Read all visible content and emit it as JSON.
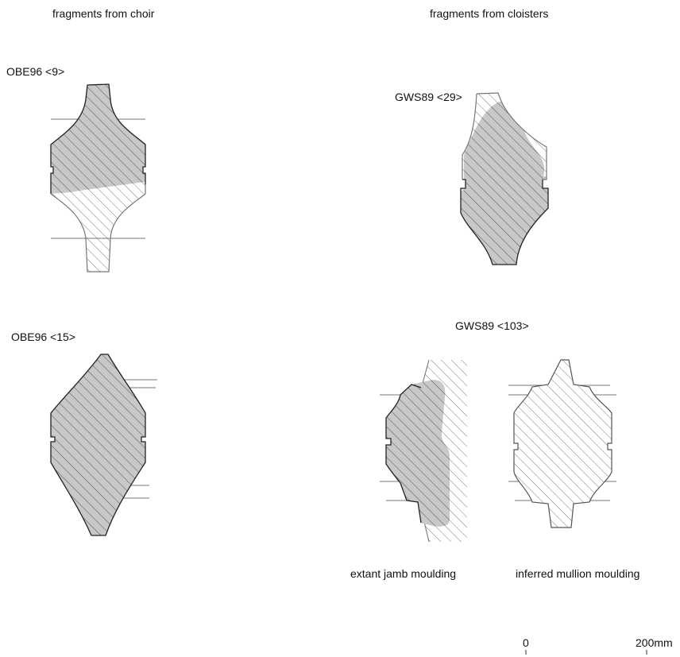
{
  "headings": {
    "left": "fragments from choir",
    "right": "fragments from cloisters"
  },
  "fragments": {
    "obe96_9": {
      "label": "OBE96 <9>"
    },
    "gws89_29": {
      "label": "GWS89 <29>"
    },
    "obe96_15": {
      "label": "OBE96 <15>"
    },
    "gws89_103": {
      "label": "GWS89 <103>"
    }
  },
  "captions": {
    "extant": "extant jamb moulding",
    "inferred": "inferred mullion moulding"
  },
  "scale_bar": {
    "start_label": "0",
    "end_label": "200mm"
  },
  "colors": {
    "extant_fill": "#c8c8c8",
    "outline_dark": "#222222",
    "outline_light": "#777777",
    "hatch": "#333333"
  }
}
